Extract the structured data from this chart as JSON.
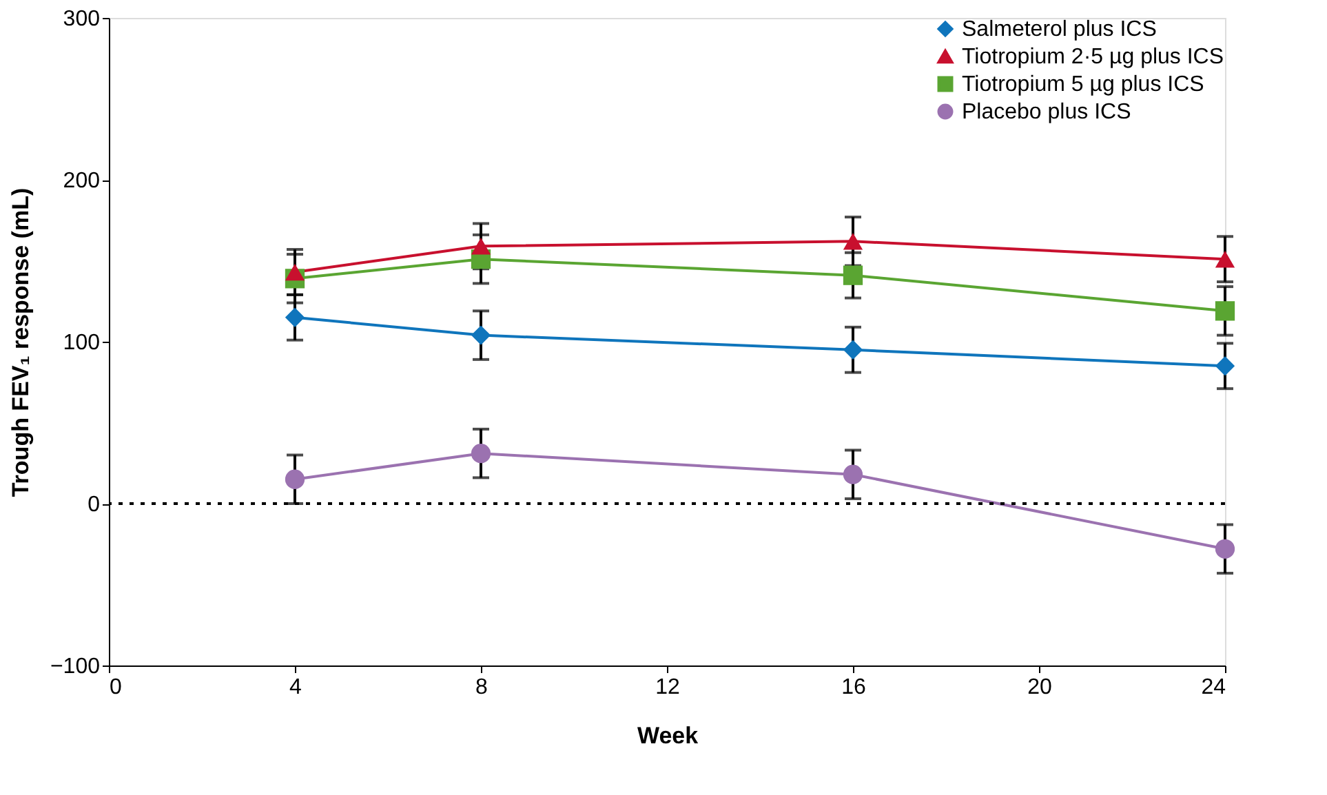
{
  "chart_data": {
    "type": "line",
    "xlabel": "Week",
    "ylabel": "Trough FEV₁ response (mL)",
    "x": [
      4,
      8,
      16,
      24
    ],
    "series": [
      {
        "name": "Salmeterol plus ICS",
        "color": "#0f75bc",
        "marker": "diamond",
        "values": [
          115,
          104,
          95,
          85
        ],
        "errors": [
          14,
          15,
          14,
          14
        ]
      },
      {
        "name": "Tiotropium 2·5 µg plus ICS",
        "color": "#c8102e",
        "marker": "triangle",
        "values": [
          143,
          159,
          162,
          151
        ],
        "errors": [
          14,
          14,
          15,
          14
        ]
      },
      {
        "name": "Tiotropium 5 µg plus ICS",
        "color": "#5aa532",
        "marker": "square",
        "values": [
          139,
          151,
          141,
          119
        ],
        "errors": [
          15,
          15,
          14,
          15
        ]
      },
      {
        "name": "Placebo plus ICS",
        "color": "#9b72b0",
        "marker": "circle",
        "values": [
          15,
          31,
          18,
          -28
        ],
        "errors": [
          15,
          15,
          15,
          15
        ]
      }
    ],
    "xlim": [
      0,
      24
    ],
    "xticks": [
      0,
      4,
      8,
      12,
      16,
      20,
      24
    ],
    "ylim": [
      -100,
      300
    ],
    "yticks": [
      -100,
      0,
      100,
      200,
      300
    ],
    "ref_lines": [
      {
        "axis": "y",
        "value": 0,
        "line_style": "dotted",
        "color": "#000000"
      }
    ],
    "grid": false,
    "legend": "top right"
  }
}
